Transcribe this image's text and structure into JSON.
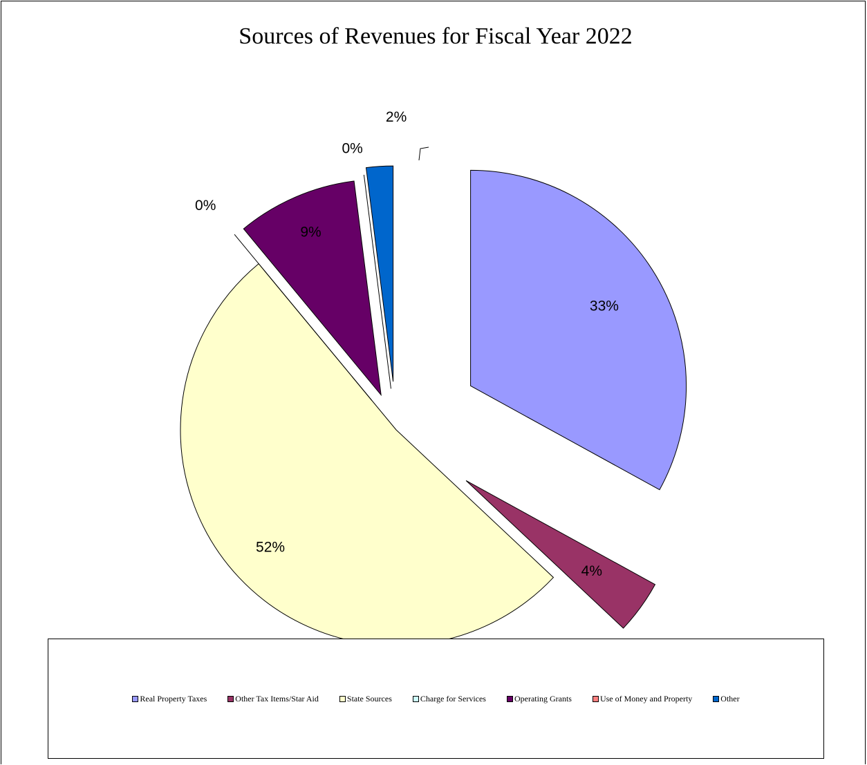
{
  "chart_data": {
    "type": "pie",
    "title": "Sources of Revenues for Fiscal Year 2022",
    "exploded": true,
    "slices": [
      {
        "label": "Real Property Taxes",
        "value": 33,
        "data_label": "33%",
        "color": "#9999FF"
      },
      {
        "label": "Other Tax Items/Star Aid",
        "value": 4,
        "data_label": "4%",
        "color": "#993366"
      },
      {
        "label": "State Sources",
        "value": 52,
        "data_label": "52%",
        "color": "#FFFFCC"
      },
      {
        "label": "Charge for Services",
        "value": 0,
        "data_label": "0%",
        "color": "#CCFFFF"
      },
      {
        "label": "Operating Grants",
        "value": 9,
        "data_label": "9%",
        "color": "#660066"
      },
      {
        "label": "Use of Money and Property",
        "value": 0,
        "data_label": "0%",
        "color": "#FF8080"
      },
      {
        "label": "Other",
        "value": 2,
        "data_label": "2%",
        "color": "#0066CC"
      }
    ],
    "legend_position": "bottom"
  }
}
